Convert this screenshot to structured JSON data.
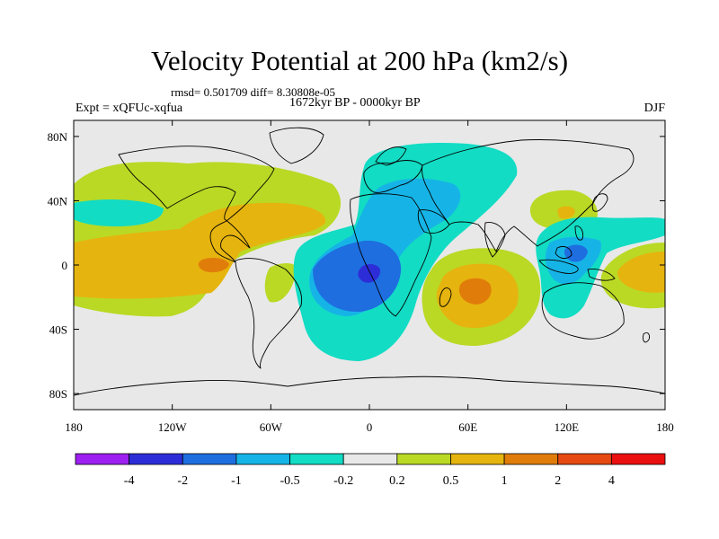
{
  "header": {
    "title": "Velocity Potential at 200 hPa (km2/s)",
    "stats": "rmsd= 0.501709 diff= 8.30808e-05",
    "period": "1672kyr BP - 0000kyr BP",
    "experiment": "Expt = xQFUc-xqfua",
    "season": "DJF"
  },
  "map": {
    "projection": "cylindrical-equidistant",
    "lon_range": [
      -180,
      180
    ],
    "lat_range": [
      -90,
      90
    ],
    "x_ticks": [
      {
        "value": -180,
        "label": "180"
      },
      {
        "value": -120,
        "label": "120W"
      },
      {
        "value": -60,
        "label": "60W"
      },
      {
        "value": 0,
        "label": "0"
      },
      {
        "value": 60,
        "label": "60E"
      },
      {
        "value": 120,
        "label": "120E"
      },
      {
        "value": 180,
        "label": "180"
      }
    ],
    "y_ticks": [
      {
        "value": 80,
        "label": "80N"
      },
      {
        "value": 40,
        "label": "40N"
      },
      {
        "value": 0,
        "label": "0"
      },
      {
        "value": -40,
        "label": "40S"
      },
      {
        "value": -80,
        "label": "80S"
      }
    ],
    "background_color": "#e8e8e8",
    "coastline_color": "#000000"
  },
  "colorbar": {
    "colors": [
      "#9d20f0",
      "#2d2dd8",
      "#1e6ee0",
      "#16b4e6",
      "#12dcc4",
      "#e8e8e8",
      "#b9d925",
      "#e6b40e",
      "#e07d0a",
      "#e64a12",
      "#ea1010"
    ],
    "labels": [
      "-4",
      "-2",
      "-1",
      "-0.5",
      "-0.2",
      "0.2",
      "0.5",
      "1",
      "2",
      "4"
    ]
  }
}
